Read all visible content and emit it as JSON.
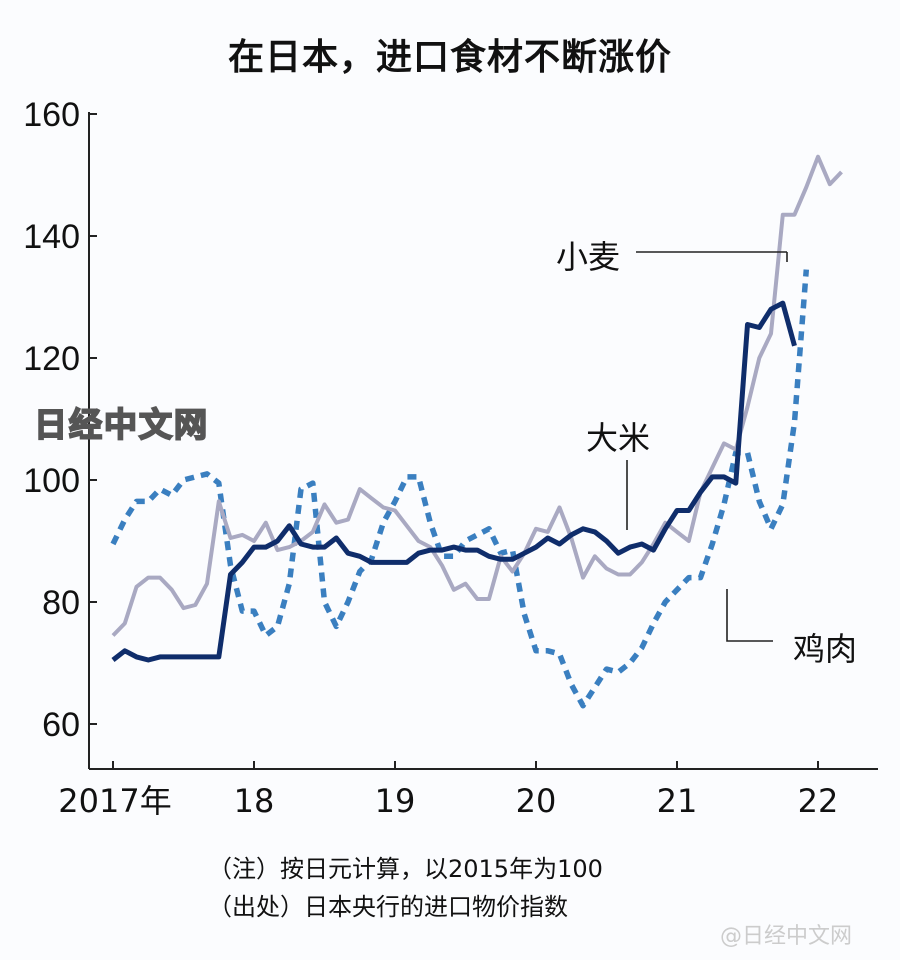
{
  "title": "在日本，进口食材不断涨价",
  "watermark": "日经中文网",
  "weibo_mark": "@日经中文网",
  "notes": {
    "note": "（注）按日元计算，以2015年为100",
    "source": "（出处）日本央行的进口物价指数"
  },
  "colors": {
    "wheat": "#a9a9c2",
    "rice": "#0f2d6b",
    "chicken": "#3a7fc0",
    "axis": "#222222"
  },
  "chart_data": {
    "type": "line",
    "title": "在日本，进口食材不断涨价",
    "xlabel": "",
    "ylabel": "",
    "ylim": [
      55,
      162
    ],
    "yticks": [
      60,
      80,
      100,
      120,
      140,
      160
    ],
    "xtick_labels": [
      "2017年",
      "18",
      "19",
      "20",
      "21",
      "22"
    ],
    "x_start": "2017-01",
    "x_frequency": "monthly",
    "grid": false,
    "legend": "inline labels",
    "series": [
      {
        "name": "小麦",
        "style": "solid-light",
        "values": [
          74.5,
          76.5,
          82.5,
          84,
          84,
          82,
          79,
          79.5,
          83,
          96.5,
          90.5,
          91,
          90,
          93,
          88.5,
          89,
          90,
          91.5,
          96,
          93,
          93.5,
          98.5,
          97,
          95.5,
          95,
          92.5,
          90,
          89,
          86,
          82,
          83,
          80.5,
          80.5,
          87.5,
          85,
          88,
          92,
          91.5,
          95.5,
          90.5,
          84,
          87.5,
          85.5,
          84.5,
          84.5,
          86.5,
          89.5,
          93,
          91.5,
          90,
          98,
          102,
          106,
          105,
          112,
          120,
          124,
          143.5,
          143.5,
          148,
          153,
          148.5,
          150.5
        ]
      },
      {
        "name": "大米",
        "style": "solid-dark",
        "values": [
          70.5,
          72,
          71,
          70.5,
          71,
          71,
          71,
          71,
          71,
          71,
          84.5,
          86.5,
          89,
          89,
          90,
          92.5,
          89.5,
          89,
          89,
          90.5,
          88,
          87.5,
          86.5,
          86.5,
          86.5,
          86.5,
          88,
          88.5,
          88.5,
          89,
          88.5,
          88.5,
          87.5,
          87,
          87,
          88,
          89,
          90.5,
          89.5,
          91,
          92,
          91.5,
          90,
          88,
          89,
          89.5,
          88.5,
          92,
          95,
          95,
          98,
          100.5,
          100.5,
          99.5,
          125.5,
          125,
          128,
          129,
          122
        ]
      },
      {
        "name": "鸡肉",
        "style": "dashed",
        "values": [
          89.5,
          93.5,
          96.5,
          96.5,
          98.5,
          97.5,
          100,
          100.5,
          101,
          99.5,
          86,
          78.5,
          78.5,
          74.5,
          76,
          83,
          98.5,
          99.5,
          80,
          76,
          80,
          85,
          87,
          93,
          96.5,
          100.5,
          100.5,
          93,
          87.5,
          87.5,
          90,
          91,
          92,
          88,
          88.5,
          78,
          72,
          72,
          71.5,
          66.5,
          63,
          66,
          69,
          68.5,
          70,
          72.5,
          76.5,
          80,
          82,
          84,
          84,
          89.5,
          96,
          104.5,
          104.5,
          96.5,
          92,
          96,
          109.5,
          134.5
        ]
      }
    ],
    "annotations": [
      {
        "text": "小麦",
        "points_to": "2021-10"
      },
      {
        "text": "大米",
        "points_to": "2020-09"
      },
      {
        "text": "鸡肉",
        "points_to": "2021-05"
      }
    ]
  },
  "axis": {
    "y_labels": [
      "160",
      "140",
      "120",
      "100",
      "80",
      "60"
    ],
    "x_labels": [
      "2017年",
      "18",
      "19",
      "20",
      "21",
      "22"
    ]
  },
  "labels": {
    "wheat": "小麦",
    "rice": "大米",
    "chicken": "鸡肉"
  }
}
